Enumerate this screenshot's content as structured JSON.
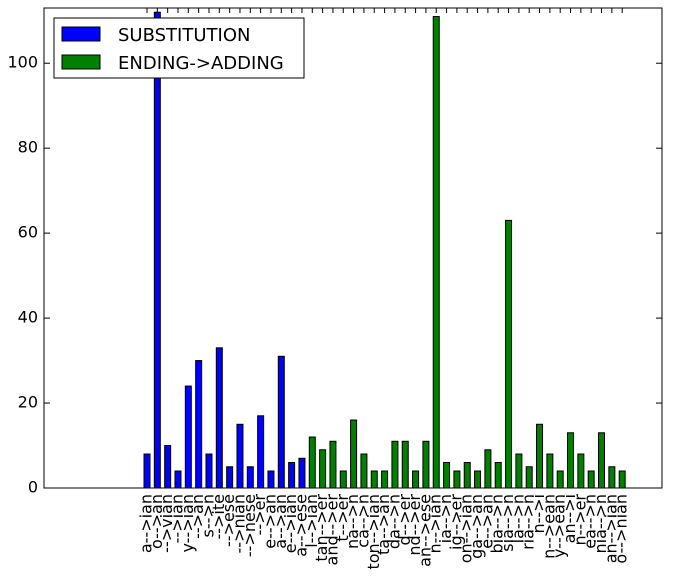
{
  "chart_data": {
    "type": "bar",
    "categories": [
      "a-->ian",
      "o-->an",
      "-->vian",
      "-->ian",
      "y-->ian",
      "-->an",
      "s-->n",
      "-->ite",
      "-->ese",
      "-->nian",
      "-->nese",
      "-->er",
      "e-->an",
      "a-->an",
      "e-->ian",
      "a-->ese",
      "l-->ian",
      "tan-->er",
      "and-->er",
      "t-->er",
      "na-->n",
      "ca-->n",
      "ton-->ian",
      "ta-->an",
      "da-->n",
      "d-->er",
      "nd-->er",
      "an-->ese",
      "n-->ian",
      "ia-->n",
      "ig-->er",
      "on-->ian",
      "ga-->an",
      "e-->an",
      "bia-->n",
      "sia-->n",
      "la-->n",
      "ria-->n",
      "n-->i",
      "n-->ean",
      "y-->ean",
      "an-->i",
      "n-->er",
      "ea-->n",
      "nia-->n",
      "an-->ian",
      "o-->nian"
    ],
    "series": [
      {
        "name": "SUBSTITUTION",
        "color": "#0000ff",
        "values": [
          8,
          112,
          10,
          4,
          24,
          30,
          8,
          33,
          5,
          15,
          5,
          17,
          4,
          31,
          6,
          7,
          null,
          null,
          null,
          null,
          null,
          null,
          null,
          null,
          null,
          null,
          null,
          null,
          null,
          null,
          null,
          null,
          null,
          null,
          null,
          null,
          null,
          null,
          null,
          null,
          null,
          null,
          null,
          null,
          null,
          null,
          null
        ]
      },
      {
        "name": "ENDING->ADDING",
        "color": "#008000",
        "values": [
          null,
          null,
          null,
          null,
          null,
          null,
          null,
          null,
          null,
          null,
          null,
          null,
          null,
          null,
          null,
          null,
          12,
          9,
          11,
          4,
          16,
          8,
          4,
          4,
          11,
          11,
          4,
          11,
          111,
          6,
          4,
          6,
          4,
          9,
          6,
          63,
          8,
          5,
          15,
          8,
          4,
          13,
          8,
          4,
          13,
          5,
          4
        ]
      }
    ],
    "ylim": [
      0,
      113
    ],
    "yticks": [
      0,
      20,
      40,
      60,
      80,
      100
    ],
    "legend": "upper left"
  }
}
